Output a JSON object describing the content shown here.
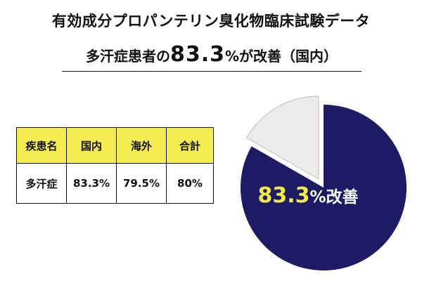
{
  "header": {
    "title": "有効成分プロパンテリン臭化物臨床試験データ",
    "headline_prefix": "多汗症患者の",
    "headline_value": "83.3",
    "headline_suffix": "%が改善（国内）"
  },
  "table": {
    "headers": [
      "疾患名",
      "国内",
      "海外",
      "合計"
    ],
    "rows": [
      [
        "多汗症",
        "83.3%",
        "79.5%",
        "80%"
      ]
    ]
  },
  "colors": {
    "header_fill": "#f5ec4f",
    "pie_main": "#1d1b63",
    "pie_rest": "#ebebeb"
  },
  "chart_data": {
    "type": "pie",
    "slices": [
      {
        "label": "改善",
        "value": 83.3,
        "exploded": false
      },
      {
        "label": "",
        "value": 16.7,
        "exploded": true
      }
    ],
    "slice_label_value": "83.3",
    "slice_label_suffix": "%改善"
  }
}
